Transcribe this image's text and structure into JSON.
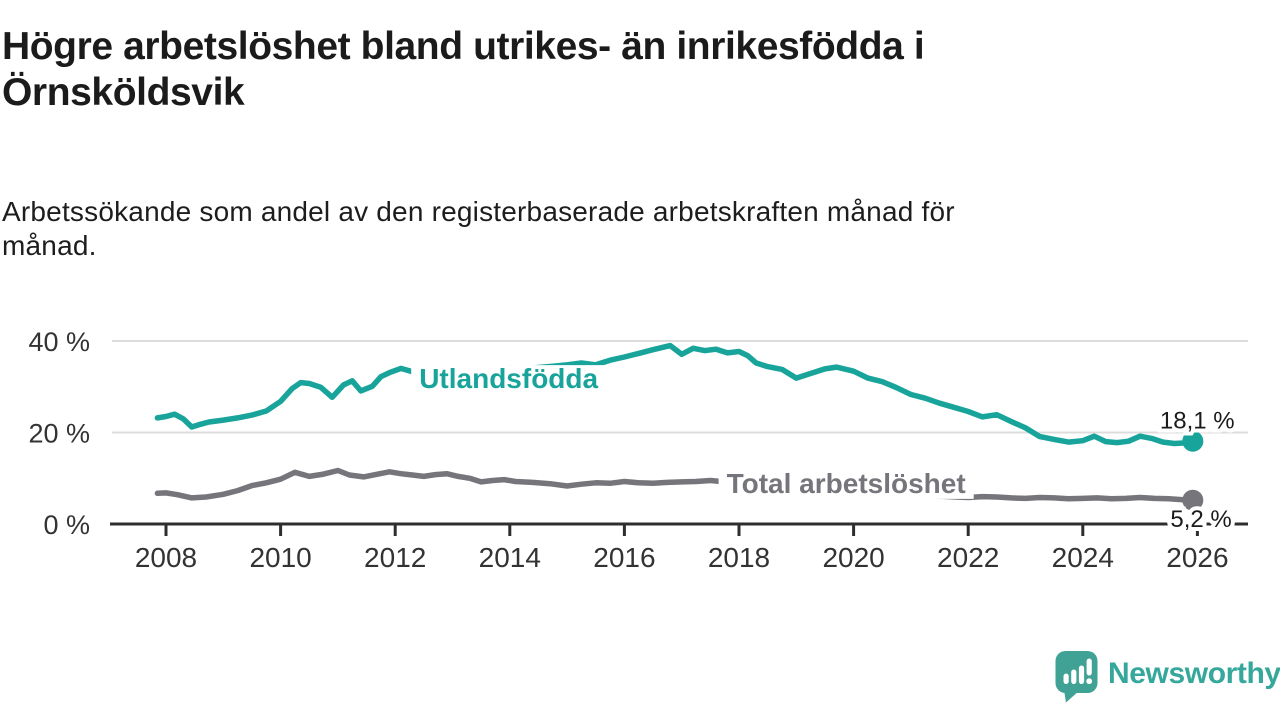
{
  "header": {
    "title_lines": [
      "Högre arbetslöshet bland utrikes- än inrikesfödda i",
      "Örnsköldsvik"
    ],
    "subtitle_lines": [
      "Arbetssökande som andel av den registerbaserade arbetskraften månad för",
      "månad."
    ]
  },
  "chart_data": {
    "type": "line",
    "title": "Högre arbetslöshet bland utrikes- än inrikesfödda i Örnsköldsvik",
    "xlabel": "",
    "ylabel": "Arbetssökande som andel av den registerbaserade arbetskraften",
    "grid": "horizontal",
    "legend_position": "inline-labels",
    "ylim": [
      0,
      43
    ],
    "x_range": [
      2007.85,
      2026.7
    ],
    "yticks": [
      {
        "value": 0,
        "label": "0 %"
      },
      {
        "value": 20,
        "label": "20 %"
      },
      {
        "value": 40,
        "label": "40 %"
      }
    ],
    "xticks": [
      2008,
      2010,
      2012,
      2014,
      2016,
      2018,
      2020,
      2022,
      2024,
      2026
    ],
    "series": [
      {
        "name": "Total arbetslöshet",
        "slug": "total-arbetsloshet",
        "color": "#76757b",
        "line_label": "Total arbetslöshet",
        "line_label_pos": [
          2019.87,
          6.8
        ],
        "end_label": "5,2 %",
        "end_label_pos": [
          2026.6,
          -0.7
        ],
        "end_value": 5.2,
        "points": [
          [
            2007.85,
            6.7
          ],
          [
            2008.0,
            6.8
          ],
          [
            2008.2,
            6.4
          ],
          [
            2008.45,
            5.7
          ],
          [
            2008.7,
            5.9
          ],
          [
            2009.0,
            6.5
          ],
          [
            2009.25,
            7.3
          ],
          [
            2009.5,
            8.4
          ],
          [
            2009.75,
            9.0
          ],
          [
            2010.0,
            9.8
          ],
          [
            2010.25,
            11.3
          ],
          [
            2010.5,
            10.4
          ],
          [
            2010.75,
            10.9
          ],
          [
            2011.0,
            11.7
          ],
          [
            2011.2,
            10.7
          ],
          [
            2011.45,
            10.3
          ],
          [
            2011.7,
            10.9
          ],
          [
            2011.9,
            11.4
          ],
          [
            2012.1,
            11.0
          ],
          [
            2012.3,
            10.7
          ],
          [
            2012.5,
            10.4
          ],
          [
            2012.7,
            10.8
          ],
          [
            2012.9,
            11.0
          ],
          [
            2013.1,
            10.4
          ],
          [
            2013.3,
            10.0
          ],
          [
            2013.5,
            9.2
          ],
          [
            2013.7,
            9.5
          ],
          [
            2013.9,
            9.7
          ],
          [
            2014.1,
            9.3
          ],
          [
            2014.4,
            9.1
          ],
          [
            2014.7,
            8.8
          ],
          [
            2015.0,
            8.3
          ],
          [
            2015.25,
            8.7
          ],
          [
            2015.5,
            9.0
          ],
          [
            2015.75,
            8.9
          ],
          [
            2016.0,
            9.3
          ],
          [
            2016.25,
            9.0
          ],
          [
            2016.5,
            8.9
          ],
          [
            2016.75,
            9.1
          ],
          [
            2017.0,
            9.2
          ],
          [
            2017.25,
            9.3
          ],
          [
            2017.5,
            9.5
          ],
          [
            2017.75,
            9.2
          ],
          [
            2018.0,
            8.9
          ],
          [
            2018.25,
            8.6
          ],
          [
            2018.5,
            8.4
          ],
          [
            2018.75,
            8.1
          ],
          [
            2019.0,
            7.8
          ],
          [
            2019.25,
            7.6
          ],
          [
            2019.5,
            7.4
          ],
          [
            2019.75,
            7.3
          ],
          [
            2020.0,
            7.2
          ],
          [
            2020.3,
            7.4
          ],
          [
            2020.6,
            7.1
          ],
          [
            2020.9,
            6.6
          ],
          [
            2021.2,
            6.3
          ],
          [
            2021.5,
            6.1
          ],
          [
            2021.8,
            5.9
          ],
          [
            2022.0,
            5.8
          ],
          [
            2022.25,
            6.0
          ],
          [
            2022.5,
            5.9
          ],
          [
            2022.75,
            5.7
          ],
          [
            2023.0,
            5.6
          ],
          [
            2023.25,
            5.8
          ],
          [
            2023.5,
            5.7
          ],
          [
            2023.75,
            5.5
          ],
          [
            2024.0,
            5.6
          ],
          [
            2024.25,
            5.7
          ],
          [
            2024.5,
            5.5
          ],
          [
            2024.75,
            5.6
          ],
          [
            2025.0,
            5.8
          ],
          [
            2025.25,
            5.6
          ],
          [
            2025.5,
            5.5
          ],
          [
            2025.75,
            5.3
          ],
          [
            2025.92,
            5.2
          ]
        ]
      },
      {
        "name": "Utlandsfödda",
        "slug": "utlandsfodda",
        "color": "#18a49a",
        "line_label": "Utlandsfödda",
        "line_label_pos": [
          2013.98,
          29.7
        ],
        "end_label": "18,1 %",
        "end_label_pos": [
          2026.65,
          20.9
        ],
        "end_value": 18.1,
        "points": [
          [
            2007.85,
            23.2
          ],
          [
            2008.0,
            23.5
          ],
          [
            2008.15,
            24.0
          ],
          [
            2008.3,
            23.0
          ],
          [
            2008.45,
            21.2
          ],
          [
            2008.6,
            21.8
          ],
          [
            2008.75,
            22.3
          ],
          [
            2009.0,
            22.7
          ],
          [
            2009.25,
            23.2
          ],
          [
            2009.5,
            23.8
          ],
          [
            2009.75,
            24.7
          ],
          [
            2010.0,
            26.8
          ],
          [
            2010.2,
            29.6
          ],
          [
            2010.35,
            30.9
          ],
          [
            2010.5,
            30.7
          ],
          [
            2010.7,
            29.9
          ],
          [
            2010.9,
            27.7
          ],
          [
            2011.1,
            30.4
          ],
          [
            2011.25,
            31.3
          ],
          [
            2011.4,
            29.1
          ],
          [
            2011.6,
            30.1
          ],
          [
            2011.75,
            32.2
          ],
          [
            2011.9,
            33.1
          ],
          [
            2012.1,
            34.0
          ],
          [
            2012.3,
            33.3
          ],
          [
            2012.5,
            33.8
          ],
          [
            2012.7,
            33.2
          ],
          [
            2012.9,
            33.6
          ],
          [
            2013.1,
            34.0
          ],
          [
            2013.3,
            33.5
          ],
          [
            2013.5,
            33.2
          ],
          [
            2013.75,
            33.7
          ],
          [
            2014.0,
            34.1
          ],
          [
            2014.25,
            33.8
          ],
          [
            2014.5,
            34.2
          ],
          [
            2014.75,
            34.5
          ],
          [
            2015.0,
            34.8
          ],
          [
            2015.25,
            35.2
          ],
          [
            2015.5,
            34.8
          ],
          [
            2015.75,
            35.8
          ],
          [
            2016.0,
            36.5
          ],
          [
            2016.25,
            37.3
          ],
          [
            2016.5,
            38.1
          ],
          [
            2016.8,
            39.0
          ],
          [
            2017.0,
            37.1
          ],
          [
            2017.2,
            38.4
          ],
          [
            2017.4,
            37.9
          ],
          [
            2017.6,
            38.2
          ],
          [
            2017.8,
            37.4
          ],
          [
            2018.0,
            37.7
          ],
          [
            2018.15,
            36.8
          ],
          [
            2018.3,
            35.2
          ],
          [
            2018.5,
            34.4
          ],
          [
            2018.75,
            33.8
          ],
          [
            2019.0,
            31.9
          ],
          [
            2019.2,
            32.7
          ],
          [
            2019.5,
            33.9
          ],
          [
            2019.7,
            34.3
          ],
          [
            2020.0,
            33.4
          ],
          [
            2020.25,
            31.9
          ],
          [
            2020.5,
            31.1
          ],
          [
            2020.75,
            29.8
          ],
          [
            2021.0,
            28.3
          ],
          [
            2021.25,
            27.5
          ],
          [
            2021.5,
            26.4
          ],
          [
            2021.75,
            25.5
          ],
          [
            2022.0,
            24.6
          ],
          [
            2022.25,
            23.4
          ],
          [
            2022.5,
            23.9
          ],
          [
            2022.75,
            22.4
          ],
          [
            2023.0,
            21.0
          ],
          [
            2023.25,
            19.1
          ],
          [
            2023.5,
            18.5
          ],
          [
            2023.75,
            17.9
          ],
          [
            2024.0,
            18.2
          ],
          [
            2024.2,
            19.2
          ],
          [
            2024.4,
            18.0
          ],
          [
            2024.6,
            17.8
          ],
          [
            2024.8,
            18.1
          ],
          [
            2025.0,
            19.2
          ],
          [
            2025.2,
            18.7
          ],
          [
            2025.4,
            17.9
          ],
          [
            2025.6,
            17.6
          ],
          [
            2025.75,
            17.7
          ],
          [
            2025.92,
            18.1
          ]
        ]
      }
    ],
    "style": {
      "grid_color": "#dcdcdc",
      "axis_color": "#2e2d2f",
      "tick_label_color": "#333333",
      "value_label_color": "#1b1b1b",
      "background": "#ffffff"
    }
  },
  "branding": {
    "logo_text": "Newsworthy",
    "logo_text_color": "#35a79b",
    "logo_icon": "bar-chart-speech-bubble-icon",
    "logo_icon_color": "#40a294"
  }
}
